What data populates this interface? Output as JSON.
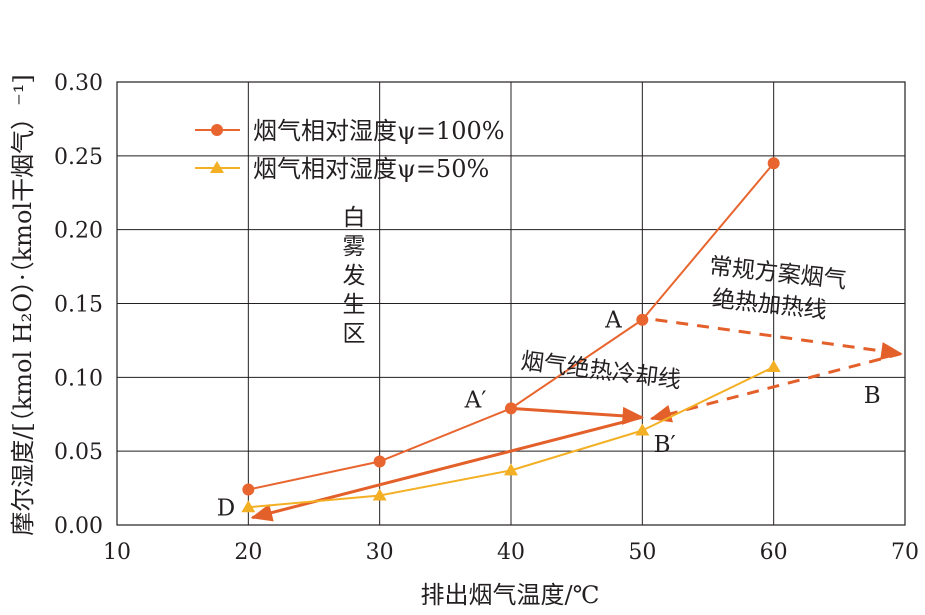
{
  "colors": {
    "series100": "#e8652f",
    "series50": "#f4b024",
    "arrow": "#e4602a",
    "grid": "#231f20",
    "text": "#231f20"
  },
  "chart_data": {
    "type": "line",
    "title": "",
    "xlabel": "排出烟气温度/℃",
    "ylabel": "摩尔湿度/[（kmol H₂O）·（kmol干烟气）⁻¹]",
    "xlim": [
      10,
      70
    ],
    "ylim": [
      0,
      0.3
    ],
    "xticks": [
      10,
      20,
      30,
      40,
      50,
      60,
      70
    ],
    "yticks": [
      0.0,
      0.05,
      0.1,
      0.15,
      0.2,
      0.25,
      0.3
    ],
    "ytick_labels": [
      "0.00",
      "0.05",
      "0.10",
      "0.15",
      "0.20",
      "0.25",
      "0.30"
    ],
    "grid": true,
    "legend_position": "top-left",
    "series": [
      {
        "name": "烟气相对湿度ψ=100%",
        "color": "#e8652f",
        "marker": "circle",
        "x": [
          20,
          30,
          40,
          50,
          60
        ],
        "y": [
          0.024,
          0.043,
          0.079,
          0.139,
          0.245
        ]
      },
      {
        "name": "烟气相对湿度ψ=50%",
        "color": "#f4b024",
        "marker": "triangle",
        "x": [
          20,
          30,
          40,
          50,
          60
        ],
        "y": [
          0.012,
          0.02,
          0.037,
          0.064,
          0.107
        ]
      }
    ],
    "arrows": [
      {
        "style": "solid",
        "from": [
          40,
          0.079
        ],
        "to": [
          50,
          0.073
        ]
      },
      {
        "style": "solid",
        "from": [
          50,
          0.073
        ],
        "to": [
          20.3,
          0.005
        ]
      },
      {
        "style": "dashed",
        "from": [
          51,
          0.139
        ],
        "to": [
          69.7,
          0.116
        ]
      },
      {
        "style": "dashed",
        "from": [
          69.7,
          0.116
        ],
        "to": [
          50.7,
          0.072
        ]
      }
    ],
    "point_labels": [
      {
        "text": "A",
        "x": 47.8,
        "y": 0.139
      },
      {
        "text": "A′",
        "x": 37.3,
        "y": 0.085
      },
      {
        "text": "B",
        "x": 67.5,
        "y": 0.088
      },
      {
        "text": "B′",
        "x": 51.7,
        "y": 0.055
      },
      {
        "text": "D",
        "x": 18.3,
        "y": 0.012
      }
    ],
    "annotations": {
      "fog_zone": [
        "白",
        "雾",
        "发",
        "生",
        "区"
      ],
      "conventional_line1": "常规方案烟气",
      "conventional_line2": "绝热加热线",
      "cooling_line": "烟气绝热冷却线"
    }
  }
}
